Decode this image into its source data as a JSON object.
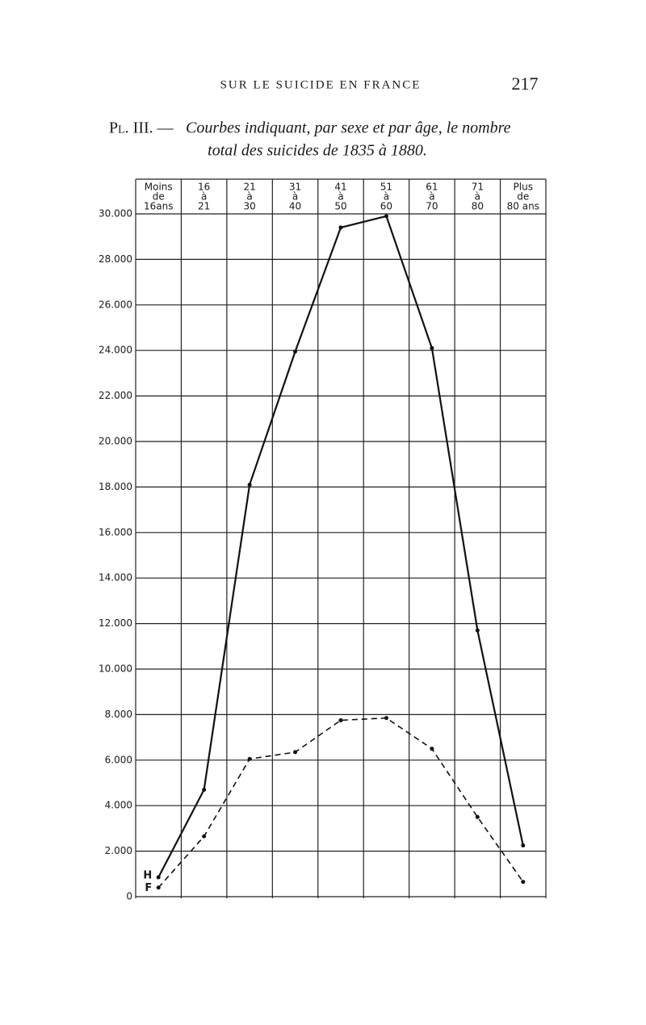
{
  "header": {
    "title": "SUR LE SUICIDE EN FRANCE",
    "page": "217"
  },
  "chart_data": {
    "type": "line",
    "plate": "Pl. III. —",
    "title": [
      "Courbes indiquant, par sexe et par âge, le nombre",
      "total des suicides de 1835 à 1880."
    ],
    "categories": [
      [
        "Moins",
        "de",
        "16ans"
      ],
      [
        "16",
        "à",
        "21"
      ],
      [
        "21",
        "à",
        "30"
      ],
      [
        "31",
        "à",
        "40"
      ],
      [
        "41",
        "à",
        "50"
      ],
      [
        "51",
        "à",
        "60"
      ],
      [
        "61",
        "à",
        "70"
      ],
      [
        "71",
        "à",
        "80"
      ],
      [
        "Plus",
        "de",
        "80 ans"
      ]
    ],
    "series": [
      {
        "name": "H",
        "color": "#111111",
        "line_style": "solid",
        "values": [
          850,
          4700,
          18100,
          23950,
          29400,
          29900,
          24100,
          11700,
          2250
        ]
      },
      {
        "name": "F",
        "color": "#111111",
        "line_style": "dashed",
        "values": [
          400,
          2650,
          6050,
          6350,
          7750,
          7850,
          6500,
          3500,
          650
        ]
      }
    ],
    "ylim": [
      0,
      30000
    ],
    "yticks": [
      0,
      {
        "value": 2000,
        "label": "2.000"
      },
      {
        "value": 4000,
        "label": "4.000"
      },
      {
        "value": 6000,
        "label": "6.000"
      },
      {
        "value": 8000,
        "label": "8.000"
      },
      {
        "value": 10000,
        "label": "10.000"
      },
      {
        "value": 12000,
        "label": "12.000"
      },
      {
        "value": 14000,
        "label": "14.000"
      },
      {
        "value": 16000,
        "label": "16.000"
      },
      {
        "value": 18000,
        "label": "18.000"
      },
      {
        "value": 20000,
        "label": "20.000"
      },
      {
        "value": 22000,
        "label": "22.000"
      },
      {
        "value": 24000,
        "label": "24.000"
      },
      {
        "value": 26000,
        "label": "26.000"
      },
      {
        "value": 28000,
        "label": "28.000"
      },
      {
        "value": 30000,
        "label": "30.000"
      }
    ],
    "grid": true
  }
}
